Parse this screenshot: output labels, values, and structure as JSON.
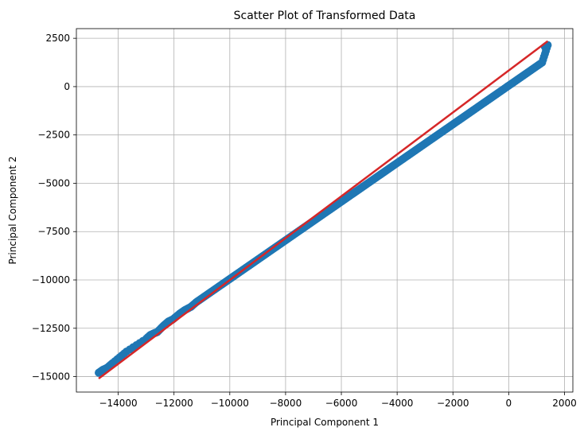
{
  "chart_data": {
    "type": "scatter",
    "title": "Scatter Plot of Transformed Data",
    "xlabel": "Principal Component 1",
    "ylabel": "Principal Component 2",
    "xlim": [
      -15500,
      2300
    ],
    "ylim": [
      -15800,
      3000
    ],
    "xticks": [
      -14000,
      -12000,
      -10000,
      -8000,
      -6000,
      -4000,
      -2000,
      0,
      2000
    ],
    "xtick_labels": [
      "−14000",
      "−12000",
      "−10000",
      "−8000",
      "−6000",
      "−4000",
      "−2000",
      "0",
      "2000"
    ],
    "yticks": [
      2500,
      0,
      -2500,
      -5000,
      -7500,
      -10000,
      -12500,
      -15000
    ],
    "ytick_labels": [
      "2500",
      "0",
      "−2500",
      "−5000",
      "−7500",
      "−10000",
      "−12500",
      "−15000"
    ],
    "grid": true,
    "colors": {
      "points": "#1f77b4",
      "fit_line": "#d62728",
      "grid": "#b0b0b0"
    },
    "points": [
      [
        -14700,
        -14800
      ],
      [
        -14550,
        -14650
      ],
      [
        -14400,
        -14550
      ],
      [
        -14200,
        -14300
      ],
      [
        -13700,
        -13700
      ],
      [
        -13000,
        -13050
      ],
      [
        -12850,
        -12850
      ],
      [
        -12700,
        -12750
      ],
      [
        -12600,
        -12700
      ],
      [
        -12400,
        -12400
      ],
      [
        -12200,
        -12150
      ],
      [
        -12050,
        -12050
      ],
      [
        -11800,
        -11750
      ],
      [
        -11600,
        -11550
      ],
      [
        -11400,
        -11400
      ],
      [
        -11200,
        -11150
      ],
      [
        -11000,
        -10950
      ],
      [
        -10800,
        -10750
      ],
      [
        -10600,
        -10550
      ],
      [
        -10400,
        -10350
      ],
      [
        -10200,
        -10150
      ],
      [
        -10000,
        -9950
      ],
      [
        -9800,
        -9750
      ],
      [
        -9600,
        -9550
      ],
      [
        -9400,
        -9350
      ],
      [
        -9200,
        -9150
      ],
      [
        -9000,
        -8950
      ],
      [
        -8800,
        -8750
      ],
      [
        -8600,
        -8550
      ],
      [
        -8400,
        -8350
      ],
      [
        -8200,
        -8150
      ],
      [
        -8000,
        -7950
      ],
      [
        -7800,
        -7750
      ],
      [
        -7600,
        -7550
      ],
      [
        -7400,
        -7350
      ],
      [
        -7200,
        -7150
      ],
      [
        -7000,
        -6950
      ],
      [
        -6800,
        -6750
      ],
      [
        -6600,
        -6550
      ],
      [
        -6400,
        -6350
      ],
      [
        -6200,
        -6150
      ],
      [
        -6000,
        -5950
      ],
      [
        -5800,
        -5750
      ],
      [
        -5600,
        -5550
      ],
      [
        -5400,
        -5350
      ],
      [
        -5200,
        -5150
      ],
      [
        -5000,
        -4950
      ],
      [
        -4800,
        -4750
      ],
      [
        -4600,
        -4550
      ],
      [
        -4400,
        -4350
      ],
      [
        -4200,
        -4150
      ],
      [
        -4000,
        -3950
      ],
      [
        -3800,
        -3750
      ],
      [
        -3600,
        -3550
      ],
      [
        -3400,
        -3350
      ],
      [
        -3200,
        -3150
      ],
      [
        -3000,
        -2950
      ],
      [
        -2800,
        -2750
      ],
      [
        -2600,
        -2550
      ],
      [
        -2400,
        -2350
      ],
      [
        -2200,
        -2150
      ],
      [
        -2000,
        -1950
      ],
      [
        -1800,
        -1750
      ],
      [
        -1600,
        -1550
      ],
      [
        -1400,
        -1350
      ],
      [
        -1200,
        -1150
      ],
      [
        -1000,
        -950
      ],
      [
        -800,
        -750
      ],
      [
        -600,
        -550
      ],
      [
        -400,
        -350
      ],
      [
        -200,
        -150
      ],
      [
        0,
        50
      ],
      [
        200,
        250
      ],
      [
        400,
        450
      ],
      [
        600,
        650
      ],
      [
        800,
        850
      ],
      [
        1000,
        1050
      ],
      [
        1200,
        1250
      ],
      [
        1400,
        2150
      ],
      [
        1350,
        2100
      ],
      [
        1300,
        2050
      ]
    ],
    "fit_line": {
      "x": [
        -14700,
        1400
      ],
      "y": [
        -15100,
        2350
      ]
    }
  }
}
